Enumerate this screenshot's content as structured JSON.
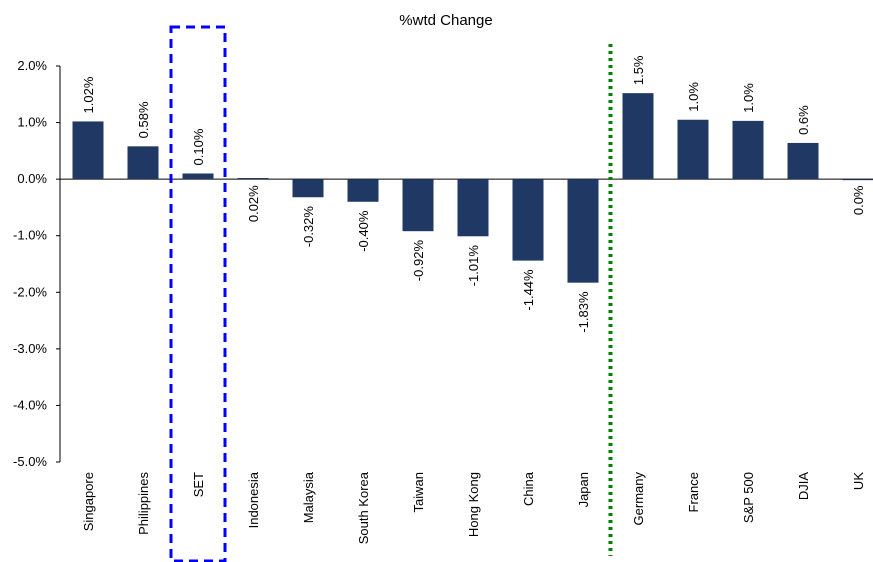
{
  "chart_data": {
    "type": "bar",
    "title": "%wtd Change",
    "xlabel": "",
    "ylabel": "",
    "ylim": [
      -5,
      2
    ],
    "yticks": [
      "2.0%",
      "1.0%",
      "0.0%",
      "-1.0%",
      "-2.0%",
      "-3.0%",
      "-4.0%",
      "-5.0%"
    ],
    "categories": [
      "Singapore",
      "Philippines",
      "SET",
      "Indonesia",
      "Malaysia",
      "South Korea",
      "Taiwan",
      "Hong Kong",
      "China",
      "Japan",
      "Germany",
      "France",
      "S&P 500",
      "DJIA",
      "UK"
    ],
    "values": [
      1.02,
      0.58,
      0.1,
      0.02,
      -0.32,
      -0.4,
      -0.92,
      -1.01,
      -1.44,
      -1.83,
      1.5,
      1.0,
      1.0,
      0.6,
      0.0
    ],
    "bar_values_plotted": [
      1.02,
      0.58,
      0.1,
      0.02,
      -0.32,
      -0.4,
      -0.92,
      -1.01,
      -1.44,
      -1.83,
      1.52,
      1.05,
      1.03,
      0.64,
      -0.01
    ],
    "data_labels": [
      "1.02%",
      "0.58%",
      "0.10%",
      "0.02%",
      "-0.32%",
      "-0.40%",
      "-0.92%",
      "-1.01%",
      "-1.44%",
      "-1.83%",
      "1.5%",
      "1.0%",
      "1.0%",
      "0.6%",
      "0.0%"
    ],
    "grid": false,
    "legend": "none",
    "bar_color": "#1f3864",
    "highlight_box_category": "SET",
    "highlight_box_color": "#0000ff",
    "divider_after_category": "Japan",
    "divider_color": "#008000"
  }
}
